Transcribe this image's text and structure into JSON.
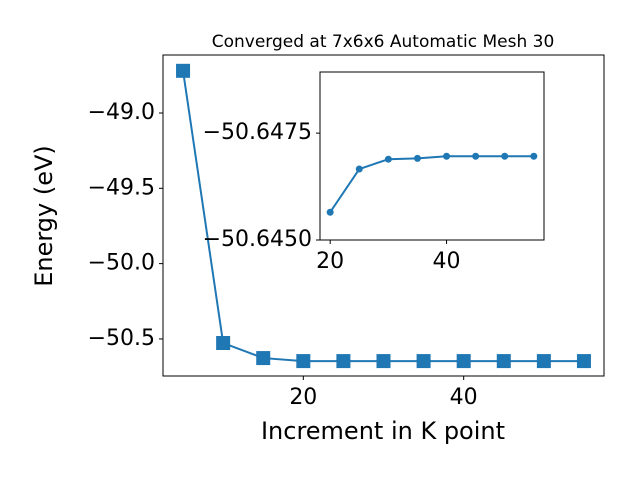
{
  "chart_data": [
    {
      "type": "line",
      "title": "Converged at 7x6x6 Automatic Mesh 30",
      "xlabel": "Increment in K point",
      "ylabel": "Energy (eV)",
      "x": [
        5,
        10,
        15,
        20,
        25,
        30,
        35,
        40,
        45,
        50,
        55
      ],
      "values": [
        -48.72,
        -50.527,
        -50.627,
        -50.647,
        -50.647,
        -50.647,
        -50.647,
        -50.647,
        -50.647,
        -50.647,
        -50.647
      ],
      "color": "#1f77b4",
      "marker": "square",
      "xlim": [
        2.5,
        57.5
      ],
      "ylim": [
        -50.746,
        -48.615
      ],
      "xticks": [
        20,
        40
      ],
      "yticks": [
        {
          "value": -49.0,
          "label": "−49.0"
        },
        {
          "value": -49.5,
          "label": "−49.5"
        },
        {
          "value": -50.0,
          "label": "−50.0"
        },
        {
          "value": -50.5,
          "label": "−50.5"
        }
      ]
    },
    {
      "type": "line",
      "x": [
        20,
        25,
        30,
        35,
        40,
        45,
        50,
        55
      ],
      "values": [
        -50.64565,
        -50.64666,
        -50.64689,
        -50.64691,
        -50.64696,
        -50.64696,
        -50.64696,
        -50.64696
      ],
      "color": "#1f77b4",
      "marker": "circle",
      "xlim": [
        18.25,
        56.75
      ],
      "ylim": [
        -50.645,
        -50.64893
      ],
      "xticks": [
        20,
        40
      ],
      "yticks": [
        {
          "value": -50.6475,
          "label": "−50.6475"
        },
        {
          "value": -50.645,
          "label": "−50.6450"
        }
      ]
    }
  ]
}
